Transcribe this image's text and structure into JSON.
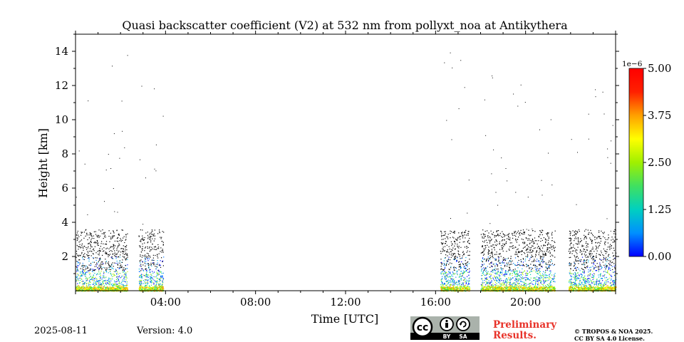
{
  "chart_data": {
    "type": "heatmap",
    "title": "Quasi backscatter coefficient (V2) at 532 nm from pollyxt_noa at Antikythera",
    "xlabel": "Time [UTC]",
    "ylabel": "Height [km]",
    "xlim_hours": [
      0,
      24
    ],
    "ylim_km": [
      0,
      15
    ],
    "x_ticks": [
      {
        "hour": 4,
        "label": "04:00"
      },
      {
        "hour": 8,
        "label": "08:00"
      },
      {
        "hour": 12,
        "label": "12:00"
      },
      {
        "hour": 16,
        "label": "16:00"
      },
      {
        "hour": 20,
        "label": "20:00"
      }
    ],
    "y_ticks": [
      {
        "km": 2,
        "label": "2"
      },
      {
        "km": 4,
        "label": "4"
      },
      {
        "km": 6,
        "label": "6"
      },
      {
        "km": 8,
        "label": "8"
      },
      {
        "km": 10,
        "label": "10"
      },
      {
        "km": 12,
        "label": "12"
      },
      {
        "km": 14,
        "label": "14"
      }
    ],
    "colorbar": {
      "min": 0,
      "max": 5,
      "scale_label": "1e−6",
      "ticks": [
        {
          "value": 0,
          "label": "0.00"
        },
        {
          "value": 1.25,
          "label": "1.25"
        },
        {
          "value": 2.5,
          "label": "2.50"
        },
        {
          "value": 3.75,
          "label": "3.75"
        },
        {
          "value": 5,
          "label": "5.00"
        }
      ],
      "colors": [
        "#0000ff",
        "#0090ff",
        "#00d0c0",
        "#40e060",
        "#a0f000",
        "#ffff00",
        "#ffa000",
        "#ff2000",
        "#ff0000"
      ]
    },
    "data_periods_hours": [
      {
        "start": 0.0,
        "end": 2.3
      },
      {
        "start": 2.8,
        "end": 3.9
      },
      {
        "start": 16.2,
        "end": 17.5
      },
      {
        "start": 18.0,
        "end": 21.3
      },
      {
        "start": 21.9,
        "end": 24.0
      }
    ]
  },
  "footer": {
    "date": "2025-08-11",
    "version": "Version: 4.0",
    "preliminary_line1": "Preliminary",
    "preliminary_line2": "Results.",
    "copyright_line1": "© TROPOS & NOA 2025.",
    "copyright_line2": "CC BY SA 4.0 License.",
    "cc_mark": "cc",
    "cc_by": "BY",
    "cc_sa": "SA"
  }
}
